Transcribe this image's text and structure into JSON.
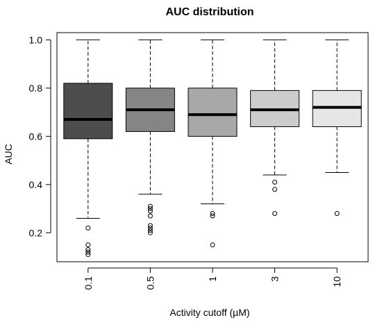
{
  "chart_data": {
    "type": "box",
    "title": "AUC distribution",
    "xlabel": "Activity cutoff (µM)",
    "ylabel": "AUC",
    "ylim": [
      0.08,
      1.03
    ],
    "yticks": [
      "0.2",
      "0.4",
      "0.6",
      "0.8",
      "1.0"
    ],
    "grid": false,
    "legend": "none",
    "categories": [
      "0.1",
      "0.5",
      "1",
      "3",
      "10"
    ],
    "boxes": [
      {
        "category": "0.1",
        "whisker_low": 0.26,
        "q1": 0.59,
        "median": 0.67,
        "q3": 0.82,
        "whisker_high": 1.0,
        "outliers": [
          0.22,
          0.15,
          0.13,
          0.12,
          0.11
        ],
        "fill": "#4d4d4d"
      },
      {
        "category": "0.5",
        "whisker_low": 0.36,
        "q1": 0.62,
        "median": 0.71,
        "q3": 0.8,
        "whisker_high": 1.0,
        "outliers": [
          0.31,
          0.3,
          0.29,
          0.27,
          0.23,
          0.22,
          0.21,
          0.2
        ],
        "fill": "#858585"
      },
      {
        "category": "1",
        "whisker_low": 0.32,
        "q1": 0.6,
        "median": 0.69,
        "q3": 0.8,
        "whisker_high": 1.0,
        "outliers": [
          0.28,
          0.27,
          0.15
        ],
        "fill": "#a8a8a8"
      },
      {
        "category": "3",
        "whisker_low": 0.44,
        "q1": 0.64,
        "median": 0.71,
        "q3": 0.79,
        "whisker_high": 1.0,
        "outliers": [
          0.41,
          0.38,
          0.28
        ],
        "fill": "#cccccc"
      },
      {
        "category": "10",
        "whisker_low": 0.45,
        "q1": 0.64,
        "median": 0.72,
        "q3": 0.79,
        "whisker_high": 1.0,
        "outliers": [
          0.28
        ],
        "fill": "#e6e6e6"
      }
    ]
  }
}
